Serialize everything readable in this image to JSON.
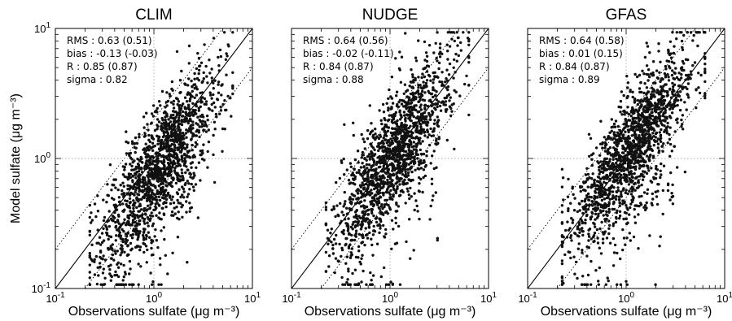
{
  "chart_data": [
    {
      "type": "scatter",
      "title": "CLIM",
      "xlabel": "Observations sulfate (μg m⁻³)",
      "ylabel": "Model  sulfate (μg m⁻³)",
      "xscale": "log",
      "yscale": "log",
      "xlim": [
        0.1,
        10
      ],
      "ylim": [
        0.1,
        10
      ],
      "ticks": [
        {
          "base": "10",
          "exp": "-1"
        },
        {
          "base": "10",
          "exp": "0"
        },
        {
          "base": "10",
          "exp": "1"
        }
      ],
      "reference_lines": [
        "1:1 solid",
        "2:1 dotted",
        "1:2 dotted",
        "x=1 dotted",
        "y=1 dotted"
      ],
      "stats": [
        "RMS : 0.63 (0.51)",
        "bias : -0.13 (-0.03)",
        "R : 0.85 (0.87)",
        "sigma : 0.82"
      ],
      "point_count": 1600,
      "distribution": {
        "bias": -0.1,
        "spread": 0.22,
        "center": 0.05,
        "low_outlier_fraction": 0.07
      },
      "marker_color": "#111111"
    },
    {
      "type": "scatter",
      "title": "NUDGE",
      "xlabel": "Observations sulfate (μg m⁻³)",
      "ylabel": "",
      "xscale": "log",
      "yscale": "log",
      "xlim": [
        0.1,
        10
      ],
      "ylim": [
        0.1,
        10
      ],
      "ticks": [
        {
          "base": "10",
          "exp": "-1"
        },
        {
          "base": "10",
          "exp": "0"
        },
        {
          "base": "10",
          "exp": "1"
        }
      ],
      "reference_lines": [
        "1:1 solid",
        "2:1 dotted",
        "1:2 dotted",
        "x=1 dotted",
        "y=1 dotted"
      ],
      "stats": [
        "RMS : 0.64 (0.56)",
        "bias : -0.02 (-0.11)",
        "R : 0.84 (0.87)",
        "sigma : 0.88"
      ],
      "point_count": 1600,
      "distribution": {
        "bias": 0.0,
        "spread": 0.22,
        "center": 0.05,
        "low_outlier_fraction": 0.07
      },
      "marker_color": "#111111"
    },
    {
      "type": "scatter",
      "title": "GFAS",
      "xlabel": "Observations sulfate (μg m⁻³)",
      "ylabel": "",
      "xscale": "log",
      "yscale": "log",
      "xlim": [
        0.1,
        10
      ],
      "ylim": [
        0.1,
        10
      ],
      "ticks": [
        {
          "base": "10",
          "exp": "-1"
        },
        {
          "base": "10",
          "exp": "0"
        },
        {
          "base": "10",
          "exp": "1"
        }
      ],
      "reference_lines": [
        "1:1 solid",
        "2:1 dotted",
        "1:2 dotted",
        "x=1 dotted",
        "y=1 dotted"
      ],
      "stats": [
        "RMS : 0.64 (0.58)",
        "bias : 0.01 (0.15)",
        "R : 0.84 (0.87)",
        "sigma : 0.89"
      ],
      "point_count": 1600,
      "distribution": {
        "bias": 0.02,
        "spread": 0.21,
        "center": 0.05,
        "low_outlier_fraction": 0.06
      },
      "marker_color": "#111111"
    }
  ]
}
